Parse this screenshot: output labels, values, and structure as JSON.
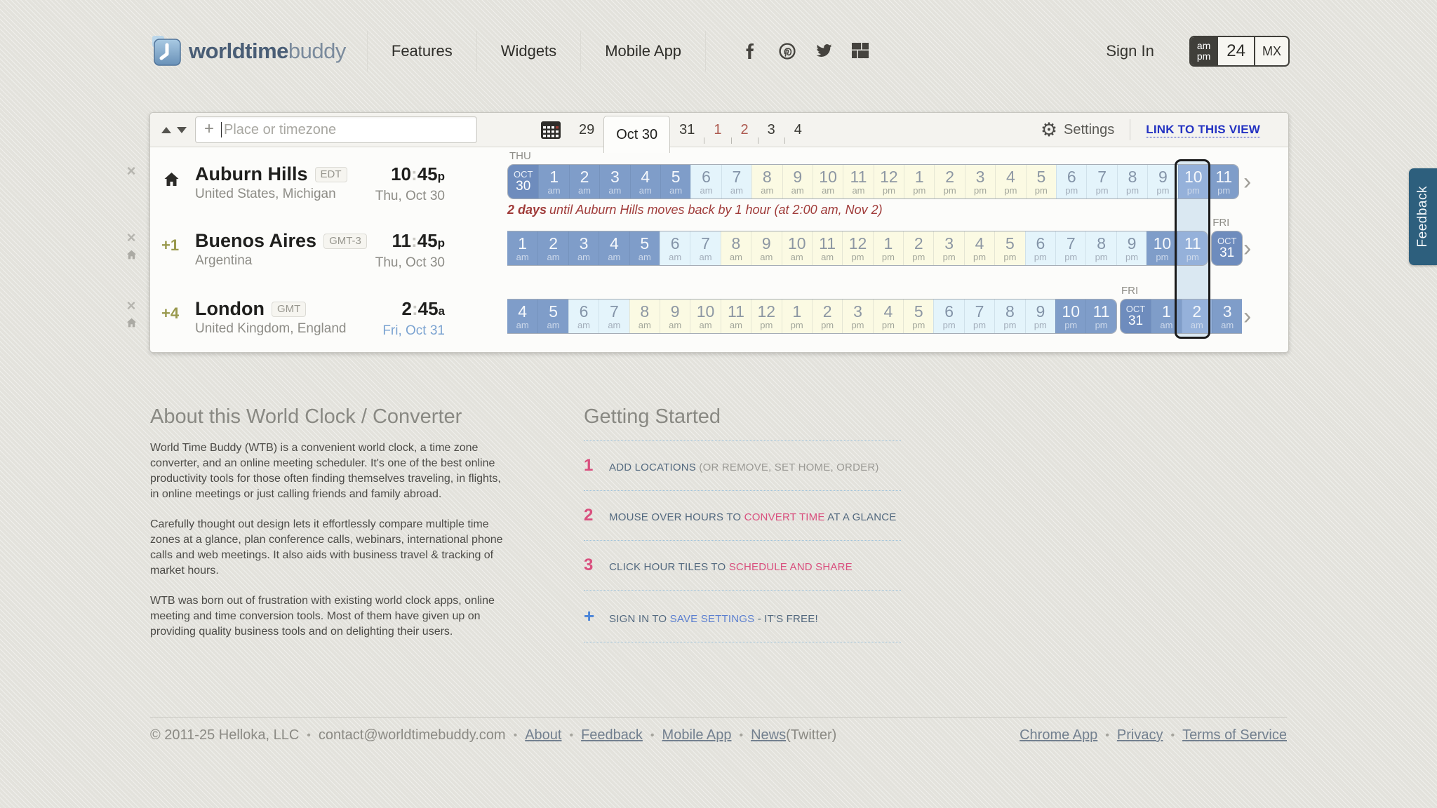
{
  "colors": {
    "night_tile": "#7f9dc9",
    "current_tile": "#95b1da",
    "dawn_tile": "#e4f4fb",
    "day_tile": "#fbfae3",
    "date_tile": "#6e8cbd",
    "accent_link": "#2433c2",
    "pink": "#d94f7e",
    "dst_red": "#a03c3a",
    "feedback_bg": "#2d5f7d"
  },
  "misc": {
    "colon": ":",
    "chevron": "›",
    "close": "×"
  },
  "header": {
    "logo_bold": "worldtime",
    "logo_light": "buddy",
    "nav": [
      {
        "label": "Features"
      },
      {
        "label": "Widgets"
      },
      {
        "label": "Mobile App"
      }
    ],
    "social": [
      "facebook",
      "pinterest",
      "twitter",
      "googleplus"
    ],
    "sign_in": "Sign In",
    "format_toggle": {
      "ampm_top": "am",
      "ampm_bottom": "pm",
      "h24": "24",
      "mx": "MX"
    }
  },
  "toolbar": {
    "search_placeholder": "Place or timezone",
    "search_plus": "+",
    "dates": [
      {
        "label": "29"
      },
      {
        "label": "Oct 30",
        "selected": true
      },
      {
        "label": "31"
      },
      {
        "label": "1",
        "weekend": true,
        "tick": true
      },
      {
        "label": "2",
        "weekend": true,
        "tick": true
      },
      {
        "label": "3",
        "tick": true
      },
      {
        "label": "4",
        "tick": true
      }
    ],
    "settings_label": "Settings",
    "link_label": "LINK TO THIS VIEW"
  },
  "locations": [
    {
      "name": "Auburn Hills",
      "badge": "EDT",
      "region": "United States, Michigan",
      "time_h": "10",
      "time_m": "45",
      "time_sfx": "p",
      "date_label": "Thu, Oct 30",
      "date_other_day": false,
      "is_home": true,
      "offset": "",
      "flat_start": false,
      "flat_end": false,
      "tiles": [
        {
          "type": "date",
          "top": "OCT",
          "num": "30",
          "day": "THU"
        },
        {
          "h": "1",
          "m": "am",
          "tone": "night"
        },
        {
          "h": "2",
          "m": "am",
          "tone": "night"
        },
        {
          "h": "3",
          "m": "am",
          "tone": "night"
        },
        {
          "h": "4",
          "m": "am",
          "tone": "night"
        },
        {
          "h": "5",
          "m": "am",
          "tone": "night"
        },
        {
          "h": "6",
          "m": "am",
          "tone": "dawn"
        },
        {
          "h": "7",
          "m": "am",
          "tone": "dawn"
        },
        {
          "h": "8",
          "m": "am",
          "tone": "day"
        },
        {
          "h": "9",
          "m": "am",
          "tone": "day"
        },
        {
          "h": "10",
          "m": "am",
          "tone": "day"
        },
        {
          "h": "11",
          "m": "am",
          "tone": "day"
        },
        {
          "h": "12",
          "m": "pm",
          "tone": "day"
        },
        {
          "h": "1",
          "m": "pm",
          "tone": "day"
        },
        {
          "h": "2",
          "m": "pm",
          "tone": "day"
        },
        {
          "h": "3",
          "m": "pm",
          "tone": "day"
        },
        {
          "h": "4",
          "m": "pm",
          "tone": "day"
        },
        {
          "h": "5",
          "m": "pm",
          "tone": "day"
        },
        {
          "h": "6",
          "m": "pm",
          "tone": "dawn"
        },
        {
          "h": "7",
          "m": "pm",
          "tone": "dawn"
        },
        {
          "h": "8",
          "m": "pm",
          "tone": "dawn"
        },
        {
          "h": "9",
          "m": "pm",
          "tone": "dawn"
        },
        {
          "h": "10",
          "m": "pm",
          "tone": "night",
          "cur": true
        },
        {
          "h": "11",
          "m": "pm",
          "tone": "night"
        }
      ]
    },
    {
      "name": "Buenos Aires",
      "badge": "GMT-3",
      "region": "Argentina",
      "time_h": "11",
      "time_m": "45",
      "time_sfx": "p",
      "date_label": "Thu, Oct 30",
      "date_other_day": false,
      "is_home": false,
      "offset": "+1",
      "flat_start": true,
      "flat_end": false,
      "tiles": [
        {
          "h": "1",
          "m": "am",
          "tone": "night"
        },
        {
          "h": "2",
          "m": "am",
          "tone": "night"
        },
        {
          "h": "3",
          "m": "am",
          "tone": "night"
        },
        {
          "h": "4",
          "m": "am",
          "tone": "night"
        },
        {
          "h": "5",
          "m": "am",
          "tone": "night"
        },
        {
          "h": "6",
          "m": "am",
          "tone": "dawn"
        },
        {
          "h": "7",
          "m": "am",
          "tone": "dawn"
        },
        {
          "h": "8",
          "m": "am",
          "tone": "day"
        },
        {
          "h": "9",
          "m": "am",
          "tone": "day"
        },
        {
          "h": "10",
          "m": "am",
          "tone": "day"
        },
        {
          "h": "11",
          "m": "am",
          "tone": "day"
        },
        {
          "h": "12",
          "m": "pm",
          "tone": "day"
        },
        {
          "h": "1",
          "m": "pm",
          "tone": "day"
        },
        {
          "h": "2",
          "m": "pm",
          "tone": "day"
        },
        {
          "h": "3",
          "m": "pm",
          "tone": "day"
        },
        {
          "h": "4",
          "m": "pm",
          "tone": "day"
        },
        {
          "h": "5",
          "m": "pm",
          "tone": "day"
        },
        {
          "h": "6",
          "m": "pm",
          "tone": "dawn"
        },
        {
          "h": "7",
          "m": "pm",
          "tone": "dawn"
        },
        {
          "h": "8",
          "m": "pm",
          "tone": "dawn"
        },
        {
          "h": "9",
          "m": "pm",
          "tone": "dawn"
        },
        {
          "h": "10",
          "m": "pm",
          "tone": "night"
        },
        {
          "h": "11",
          "m": "pm",
          "tone": "night",
          "cur": true
        },
        {
          "type": "date",
          "top": "OCT",
          "num": "31",
          "day": "FRI",
          "gap": true
        }
      ]
    },
    {
      "name": "London",
      "badge": "GMT",
      "region": "United Kingdom, England",
      "time_h": "2",
      "time_m": "45",
      "time_sfx": "a",
      "date_label": "Fri, Oct 31",
      "date_other_day": true,
      "is_home": false,
      "offset": "+4",
      "flat_start": true,
      "flat_end": true,
      "tiles": [
        {
          "h": "4",
          "m": "am",
          "tone": "night"
        },
        {
          "h": "5",
          "m": "am",
          "tone": "night"
        },
        {
          "h": "6",
          "m": "am",
          "tone": "dawn"
        },
        {
          "h": "7",
          "m": "am",
          "tone": "dawn"
        },
        {
          "h": "8",
          "m": "am",
          "tone": "day"
        },
        {
          "h": "9",
          "m": "am",
          "tone": "day"
        },
        {
          "h": "10",
          "m": "am",
          "tone": "day"
        },
        {
          "h": "11",
          "m": "am",
          "tone": "day"
        },
        {
          "h": "12",
          "m": "pm",
          "tone": "day"
        },
        {
          "h": "1",
          "m": "pm",
          "tone": "day"
        },
        {
          "h": "2",
          "m": "pm",
          "tone": "day"
        },
        {
          "h": "3",
          "m": "pm",
          "tone": "day"
        },
        {
          "h": "4",
          "m": "pm",
          "tone": "day"
        },
        {
          "h": "5",
          "m": "pm",
          "tone": "day"
        },
        {
          "h": "6",
          "m": "pm",
          "tone": "dawn"
        },
        {
          "h": "7",
          "m": "pm",
          "tone": "dawn"
        },
        {
          "h": "8",
          "m": "pm",
          "tone": "dawn"
        },
        {
          "h": "9",
          "m": "pm",
          "tone": "dawn"
        },
        {
          "h": "10",
          "m": "pm",
          "tone": "night"
        },
        {
          "h": "11",
          "m": "pm",
          "tone": "night"
        },
        {
          "type": "date",
          "top": "OCT",
          "num": "31",
          "day": "FRI",
          "gap": true
        },
        {
          "h": "1",
          "m": "am",
          "tone": "night"
        },
        {
          "h": "2",
          "m": "am",
          "tone": "night",
          "cur": true
        },
        {
          "h": "3",
          "m": "am",
          "tone": "night"
        }
      ]
    }
  ],
  "dst_note": {
    "lead": "2 days",
    "body": "until Auburn Hills moves back by 1 hour",
    "paren": "(at 2:00 am, Nov 2)"
  },
  "about": {
    "title": "About this World Clock / Converter",
    "paragraphs": [
      "World Time Buddy (WTB) is a convenient world clock, a time zone converter, and an online meeting scheduler. It's one of the best online productivity tools for those often finding themselves traveling, in flights, in online meetings or just calling friends and family abroad.",
      "Carefully thought out design lets it effortlessly compare multiple time zones at a glance, plan conference calls, webinars, international phone calls and web meetings. It also aids with business travel & tracking of market hours.",
      "WTB was born out of frustration with existing world clock apps, online meeting and time conversion tools. Most of them have given up on providing quality business tools and on delighting their users."
    ]
  },
  "getting_started": {
    "title": "Getting Started",
    "items": [
      {
        "num": "1",
        "num_tone": "pink",
        "parts": [
          {
            "t": "ADD LOCATIONS ",
            "tone": "slate"
          },
          {
            "t": "(OR REMOVE, SET HOME, ORDER)",
            "tone": "gray"
          }
        ]
      },
      {
        "num": "2",
        "num_tone": "pink",
        "parts": [
          {
            "t": "MOUSE OVER HOURS TO ",
            "tone": "slate"
          },
          {
            "t": "CONVERT TIME",
            "tone": "pink"
          },
          {
            "t": " AT A GLANCE",
            "tone": "slate"
          }
        ]
      },
      {
        "num": "3",
        "num_tone": "pink",
        "parts": [
          {
            "t": "CLICK HOUR TILES TO ",
            "tone": "slate"
          },
          {
            "t": "SCHEDULE AND SHARE",
            "tone": "pink"
          }
        ]
      },
      {
        "num": "+",
        "num_tone": "blue",
        "parts": [
          {
            "t": "SIGN IN TO ",
            "tone": "slate"
          },
          {
            "t": "SAVE SETTINGS",
            "tone": "blue"
          },
          {
            "t": " - IT'S FREE!",
            "tone": "slate"
          }
        ]
      }
    ]
  },
  "footer": {
    "left": [
      {
        "t": "© 2011-25 Helloka, LLC",
        "kind": "plain"
      },
      {
        "t": "•",
        "kind": "sep"
      },
      {
        "t": "contact@worldtimebuddy.com",
        "kind": "plain"
      },
      {
        "t": "•",
        "kind": "sep"
      },
      {
        "t": "About",
        "kind": "link"
      },
      {
        "t": "•",
        "kind": "sep"
      },
      {
        "t": "Feedback",
        "kind": "link"
      },
      {
        "t": "•",
        "kind": "sep"
      },
      {
        "t": "Mobile App",
        "kind": "link"
      },
      {
        "t": "•",
        "kind": "sep"
      },
      {
        "t": "News",
        "kind": "link"
      },
      {
        "t": "(Twitter)",
        "kind": "plain"
      }
    ],
    "right": [
      {
        "t": "Chrome App",
        "kind": "link"
      },
      {
        "t": "•",
        "kind": "sep"
      },
      {
        "t": "Privacy",
        "kind": "link"
      },
      {
        "t": "•",
        "kind": "sep"
      },
      {
        "t": "Terms of Service",
        "kind": "link"
      }
    ]
  },
  "feedback_label": "Feedback"
}
